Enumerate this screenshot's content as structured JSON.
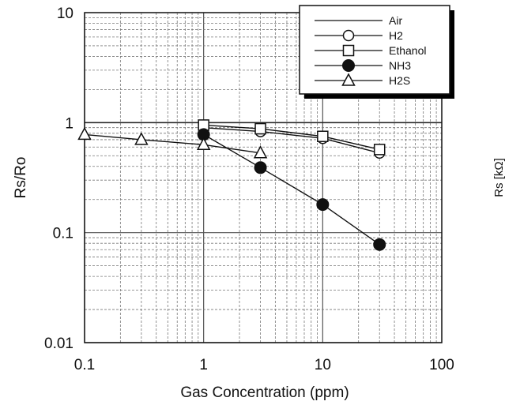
{
  "chart_data": {
    "type": "line",
    "xlabel": "Gas Concentration (ppm)",
    "ylabel": "Rs/Ro",
    "right_axis_label": "Rs [kΩ]",
    "x_scale": "log",
    "y_scale": "log",
    "xlim": [
      0.1,
      100
    ],
    "ylim": [
      0.01,
      10
    ],
    "x_ticks": [
      {
        "value": 0.1,
        "label": "0.1"
      },
      {
        "value": 1,
        "label": "1"
      },
      {
        "value": 10,
        "label": "10"
      },
      {
        "value": 100,
        "label": "100"
      }
    ],
    "y_ticks": [
      {
        "value": 0.01,
        "label": "0.01"
      },
      {
        "value": 0.1,
        "label": "0.1"
      },
      {
        "value": 1,
        "label": "1"
      },
      {
        "value": 10,
        "label": "10"
      }
    ],
    "grid": true,
    "legend_position": "top-right",
    "series": [
      {
        "name": "Air",
        "marker": "none",
        "points": []
      },
      {
        "name": "H2",
        "marker": "circle-open",
        "points": [
          {
            "x": 1,
            "y": 0.9
          },
          {
            "x": 3,
            "y": 0.83
          },
          {
            "x": 10,
            "y": 0.72
          },
          {
            "x": 30,
            "y": 0.53
          }
        ]
      },
      {
        "name": "Ethanol",
        "marker": "square-open",
        "points": [
          {
            "x": 1,
            "y": 0.95
          },
          {
            "x": 3,
            "y": 0.88
          },
          {
            "x": 10,
            "y": 0.75
          },
          {
            "x": 30,
            "y": 0.57
          }
        ]
      },
      {
        "name": "NH3",
        "marker": "circle-filled",
        "points": [
          {
            "x": 1,
            "y": 0.78
          },
          {
            "x": 3,
            "y": 0.39
          },
          {
            "x": 10,
            "y": 0.18
          },
          {
            "x": 30,
            "y": 0.078
          }
        ]
      },
      {
        "name": "H2S",
        "marker": "triangle-open",
        "points": [
          {
            "x": 0.1,
            "y": 0.78
          },
          {
            "x": 0.3,
            "y": 0.7
          },
          {
            "x": 1,
            "y": 0.63
          },
          {
            "x": 3,
            "y": 0.53
          }
        ]
      }
    ]
  }
}
